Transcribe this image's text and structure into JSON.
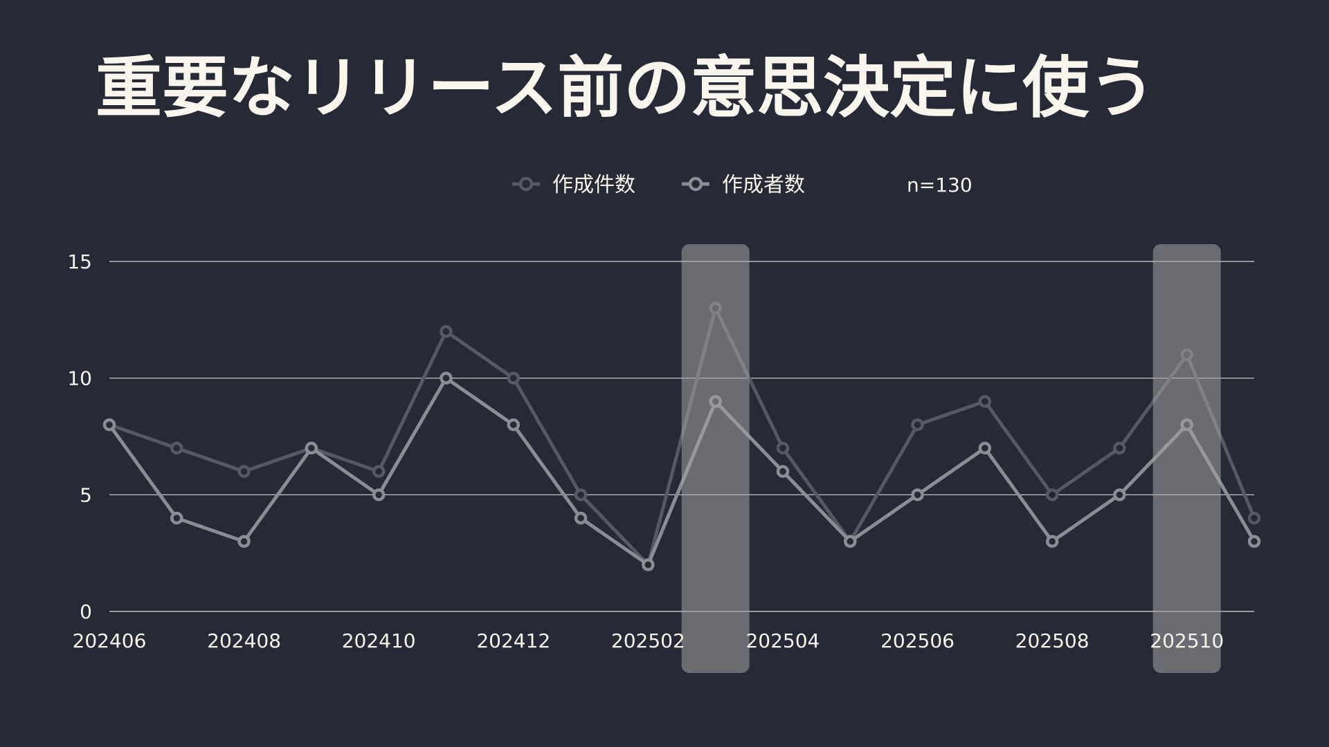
{
  "slide": {
    "title": "重要なリリース前の意思決定に使う"
  },
  "chart_data": {
    "type": "line",
    "title": "",
    "xlabel": "",
    "ylabel": "",
    "x": [
      "202406",
      "202407",
      "202408",
      "202409",
      "202410",
      "202411",
      "202412",
      "202501",
      "202502",
      "202503",
      "202504",
      "202505",
      "202506",
      "202507",
      "202508",
      "202509",
      "202510",
      "202511"
    ],
    "x_tick_labels": [
      "202406",
      "202408",
      "202410",
      "202412",
      "202502",
      "202504",
      "202506",
      "202508",
      "202510"
    ],
    "ylim": [
      0,
      15
    ],
    "y_ticks": [
      0,
      5,
      10,
      15
    ],
    "grid": true,
    "legend_position": "top-center",
    "annotation": "n=130",
    "highlight_periods": [
      "202503",
      "202510"
    ],
    "series": [
      {
        "name": "作成件数",
        "values": [
          8,
          7,
          6,
          7,
          6,
          12,
          10,
          5,
          2,
          13,
          7,
          3,
          8,
          9,
          5,
          7,
          11,
          4
        ],
        "color": "#555963"
      },
      {
        "name": "作成者数",
        "values": [
          8,
          4,
          3,
          7,
          5,
          10,
          8,
          4,
          2,
          9,
          6,
          3,
          5,
          7,
          3,
          5,
          8,
          3
        ],
        "color": "#8b8d94"
      }
    ],
    "colors": {
      "background": "#272a35",
      "text": "#f8f5ef",
      "grid": "#d9d9d9",
      "highlight": "#a3a3a3"
    }
  }
}
